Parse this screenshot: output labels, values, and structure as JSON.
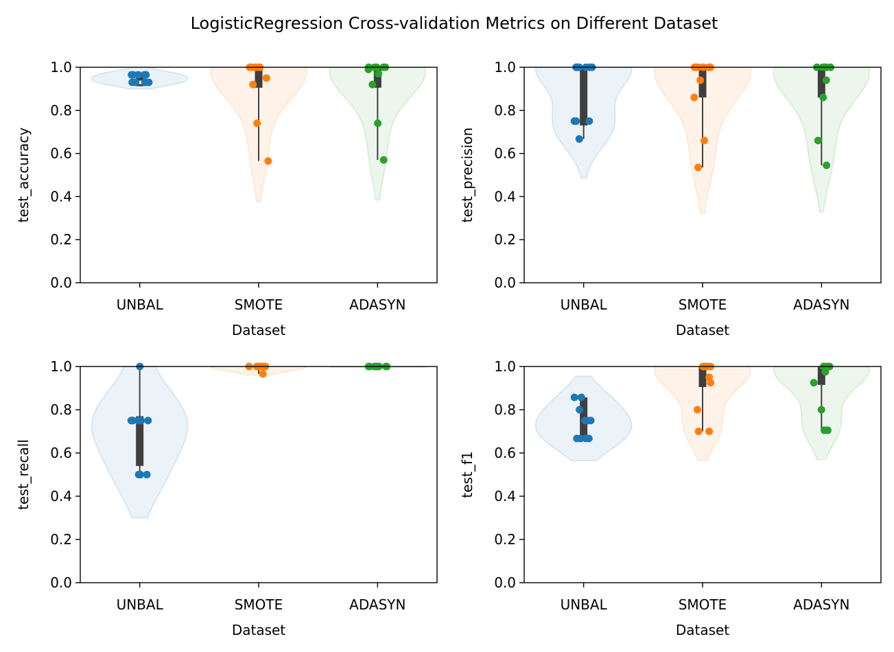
{
  "suptitle": "LogisticRegression Cross-validation Metrics on Different Dataset",
  "colors": {
    "UNBAL": "#1f77b4",
    "SMOTE": "#ff7f0e",
    "ADASYN": "#2ca02c",
    "box": "#3f3f3f"
  },
  "chart_data": [
    {
      "type": "violin",
      "ylabel": "test_accuracy",
      "xlabel": "Dataset",
      "ylim": [
        0,
        1
      ],
      "yticks": [
        "0.0",
        "0.2",
        "0.4",
        "0.6",
        "0.8",
        "1.0"
      ],
      "categories": [
        "UNBAL",
        "SMOTE",
        "ADASYN"
      ],
      "groups": [
        {
          "name": "UNBAL",
          "points": [
            0.965,
            0.965,
            0.965,
            0.965,
            0.965,
            0.93,
            0.93,
            0.93,
            0.93,
            0.93
          ],
          "q1": 0.912,
          "median": 0.93,
          "q3": 0.97,
          "kde_range": [
            0.9,
            1.0
          ],
          "kde_peak": 0.93
        },
        {
          "name": "SMOTE",
          "points": [
            1.0,
            1.0,
            1.0,
            1.0,
            1.0,
            1.0,
            0.95,
            0.92,
            0.74,
            0.565
          ],
          "q1": 0.905,
          "median": 1.0,
          "q3": 1.0,
          "kde_range": [
            0.375,
            1.0
          ],
          "kde_peak": 0.96
        },
        {
          "name": "ADASYN",
          "points": [
            1.0,
            1.0,
            1.0,
            1.0,
            1.0,
            0.99,
            0.97,
            0.92,
            0.74,
            0.57
          ],
          "q1": 0.905,
          "median": 1.0,
          "q3": 1.0,
          "kde_range": [
            0.385,
            1.0
          ],
          "kde_peak": 0.97
        }
      ]
    },
    {
      "type": "violin",
      "ylabel": "test_precision",
      "xlabel": "Dataset",
      "ylim": [
        0,
        1
      ],
      "yticks": [
        "0.0",
        "0.2",
        "0.4",
        "0.6",
        "0.8",
        "1.0"
      ],
      "categories": [
        "UNBAL",
        "SMOTE",
        "ADASYN"
      ],
      "groups": [
        {
          "name": "UNBAL",
          "points": [
            1.0,
            1.0,
            1.0,
            1.0,
            1.0,
            1.0,
            0.75,
            0.75,
            0.75,
            0.667
          ],
          "q1": 0.73,
          "median": 1.0,
          "q3": 1.0,
          "kde_range": [
            0.485,
            1.0
          ],
          "kde_peak": 0.9
        },
        {
          "name": "SMOTE",
          "points": [
            1.0,
            1.0,
            1.0,
            1.0,
            1.0,
            1.0,
            0.94,
            0.86,
            0.66,
            0.535
          ],
          "q1": 0.86,
          "median": 1.0,
          "q3": 1.0,
          "kde_range": [
            0.32,
            1.0
          ],
          "kde_peak": 0.95
        },
        {
          "name": "ADASYN",
          "points": [
            1.0,
            1.0,
            1.0,
            1.0,
            1.0,
            1.0,
            0.94,
            0.86,
            0.66,
            0.545
          ],
          "q1": 0.86,
          "median": 1.0,
          "q3": 1.0,
          "kde_range": [
            0.33,
            1.0
          ],
          "kde_peak": 0.95
        }
      ]
    },
    {
      "type": "violin",
      "ylabel": "test_recall",
      "xlabel": "Dataset",
      "ylim": [
        0,
        1
      ],
      "yticks": [
        "0.0",
        "0.2",
        "0.4",
        "0.6",
        "0.8",
        "1.0"
      ],
      "categories": [
        "UNBAL",
        "SMOTE",
        "ADASYN"
      ],
      "groups": [
        {
          "name": "UNBAL",
          "points": [
            1.0,
            0.75,
            0.75,
            0.75,
            0.75,
            0.75,
            0.75,
            0.5,
            0.5,
            0.5
          ],
          "q1": 0.54,
          "median": 0.75,
          "q3": 0.77,
          "kde_range": [
            0.3,
            1.0
          ],
          "kde_peak": 0.73
        },
        {
          "name": "SMOTE",
          "points": [
            1.0,
            1.0,
            1.0,
            1.0,
            1.0,
            1.0,
            1.0,
            1.0,
            1.0,
            0.966
          ],
          "q1": 1.0,
          "median": 1.0,
          "q3": 1.0,
          "kde_range": [
            0.96,
            1.0
          ],
          "kde_peak": 0.995
        },
        {
          "name": "ADASYN",
          "points": [
            1.0,
            1.0,
            1.0,
            1.0,
            1.0,
            1.0,
            1.0,
            1.0,
            1.0,
            1.0
          ],
          "q1": 1.0,
          "median": 1.0,
          "q3": 1.0,
          "kde_range": [
            0.995,
            1.0
          ],
          "kde_peak": 1.0
        }
      ]
    },
    {
      "type": "violin",
      "ylabel": "test_f1",
      "xlabel": "Dataset",
      "ylim": [
        0,
        1
      ],
      "yticks": [
        "0.0",
        "0.2",
        "0.4",
        "0.6",
        "0.8",
        "1.0"
      ],
      "categories": [
        "UNBAL",
        "SMOTE",
        "ADASYN"
      ],
      "groups": [
        {
          "name": "UNBAL",
          "points": [
            0.857,
            0.857,
            0.8,
            0.75,
            0.75,
            0.75,
            0.667,
            0.667,
            0.667,
            0.667
          ],
          "q1": 0.667,
          "median": 0.75,
          "q3": 0.857,
          "kde_range": [
            0.565,
            0.955
          ],
          "kde_peak": 0.75
        },
        {
          "name": "SMOTE",
          "points": [
            1.0,
            1.0,
            1.0,
            1.0,
            1.0,
            0.95,
            0.925,
            0.8,
            0.7,
            0.7
          ],
          "q1": 0.905,
          "median": 1.0,
          "q3": 1.0,
          "kde_range": [
            0.565,
            1.0
          ],
          "kde_peak": 0.97
        },
        {
          "name": "ADASYN",
          "points": [
            1.0,
            1.0,
            1.0,
            1.0,
            1.0,
            0.975,
            0.925,
            0.8,
            0.705,
            0.705
          ],
          "q1": 0.915,
          "median": 1.0,
          "q3": 1.0,
          "kde_range": [
            0.57,
            1.0
          ],
          "kde_peak": 0.97
        }
      ]
    }
  ]
}
